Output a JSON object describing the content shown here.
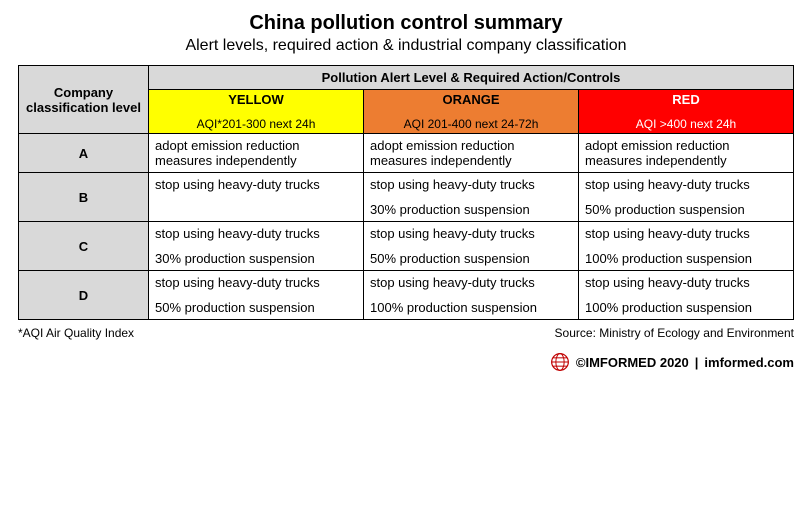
{
  "title": "China pollution control summary",
  "subtitle": "Alert levels, required action & industrial company classification",
  "table": {
    "company_header": "Company classification level",
    "pollution_header": "Pollution Alert Level & Required Action/Controls",
    "columns_width": {
      "company": 130
    },
    "alerts": [
      {
        "name": "YELLOW",
        "aqi": "AQI*201-300 next 24h",
        "bg": "#ffff00",
        "text": "#000000"
      },
      {
        "name": "ORANGE",
        "aqi": "AQI 201-400 next 24-72h",
        "bg": "#ed7d31",
        "text": "#000000"
      },
      {
        "name": "RED",
        "aqi": "AQI >400 next 24h",
        "bg": "#ff0000",
        "text": "#ffffff"
      }
    ],
    "rows": [
      {
        "label": "A",
        "cells": [
          {
            "action1": "adopt emission reduction measures independently",
            "action2": ""
          },
          {
            "action1": "adopt emission reduction measures independently",
            "action2": ""
          },
          {
            "action1": "adopt emission reduction measures independently",
            "action2": ""
          }
        ]
      },
      {
        "label": "B",
        "cells": [
          {
            "action1": "stop using heavy-duty trucks",
            "action2": ""
          },
          {
            "action1": "stop using heavy-duty trucks",
            "action2": "30% production suspension"
          },
          {
            "action1": "stop using heavy-duty trucks",
            "action2": "50% production suspension"
          }
        ]
      },
      {
        "label": "C",
        "cells": [
          {
            "action1": "stop using heavy-duty trucks",
            "action2": "30% production suspension"
          },
          {
            "action1": "stop using heavy-duty trucks",
            "action2": "50% production suspension"
          },
          {
            "action1": "stop using heavy-duty trucks",
            "action2": "100% production suspension"
          }
        ]
      },
      {
        "label": "D",
        "cells": [
          {
            "action1": "stop using heavy-duty trucks",
            "action2": "50% production suspension"
          },
          {
            "action1": "stop using heavy-duty trucks",
            "action2": "100% production suspension"
          },
          {
            "action1": "stop using heavy-duty trucks",
            "action2": "100% production suspension"
          }
        ]
      }
    ]
  },
  "footnote_left": "*AQI Air Quality Index",
  "footnote_right": "Source: Ministry of Ecology and Environment",
  "brand": {
    "copyright": "©IMFORMED 2020",
    "site": "imformed.com",
    "logo_color": "#c00000"
  },
  "style": {
    "header_bg": "#d9d9d9",
    "border_color": "#000000",
    "title_fontsize": 20,
    "subtitle_fontsize": 16,
    "cell_fontsize": 13
  }
}
